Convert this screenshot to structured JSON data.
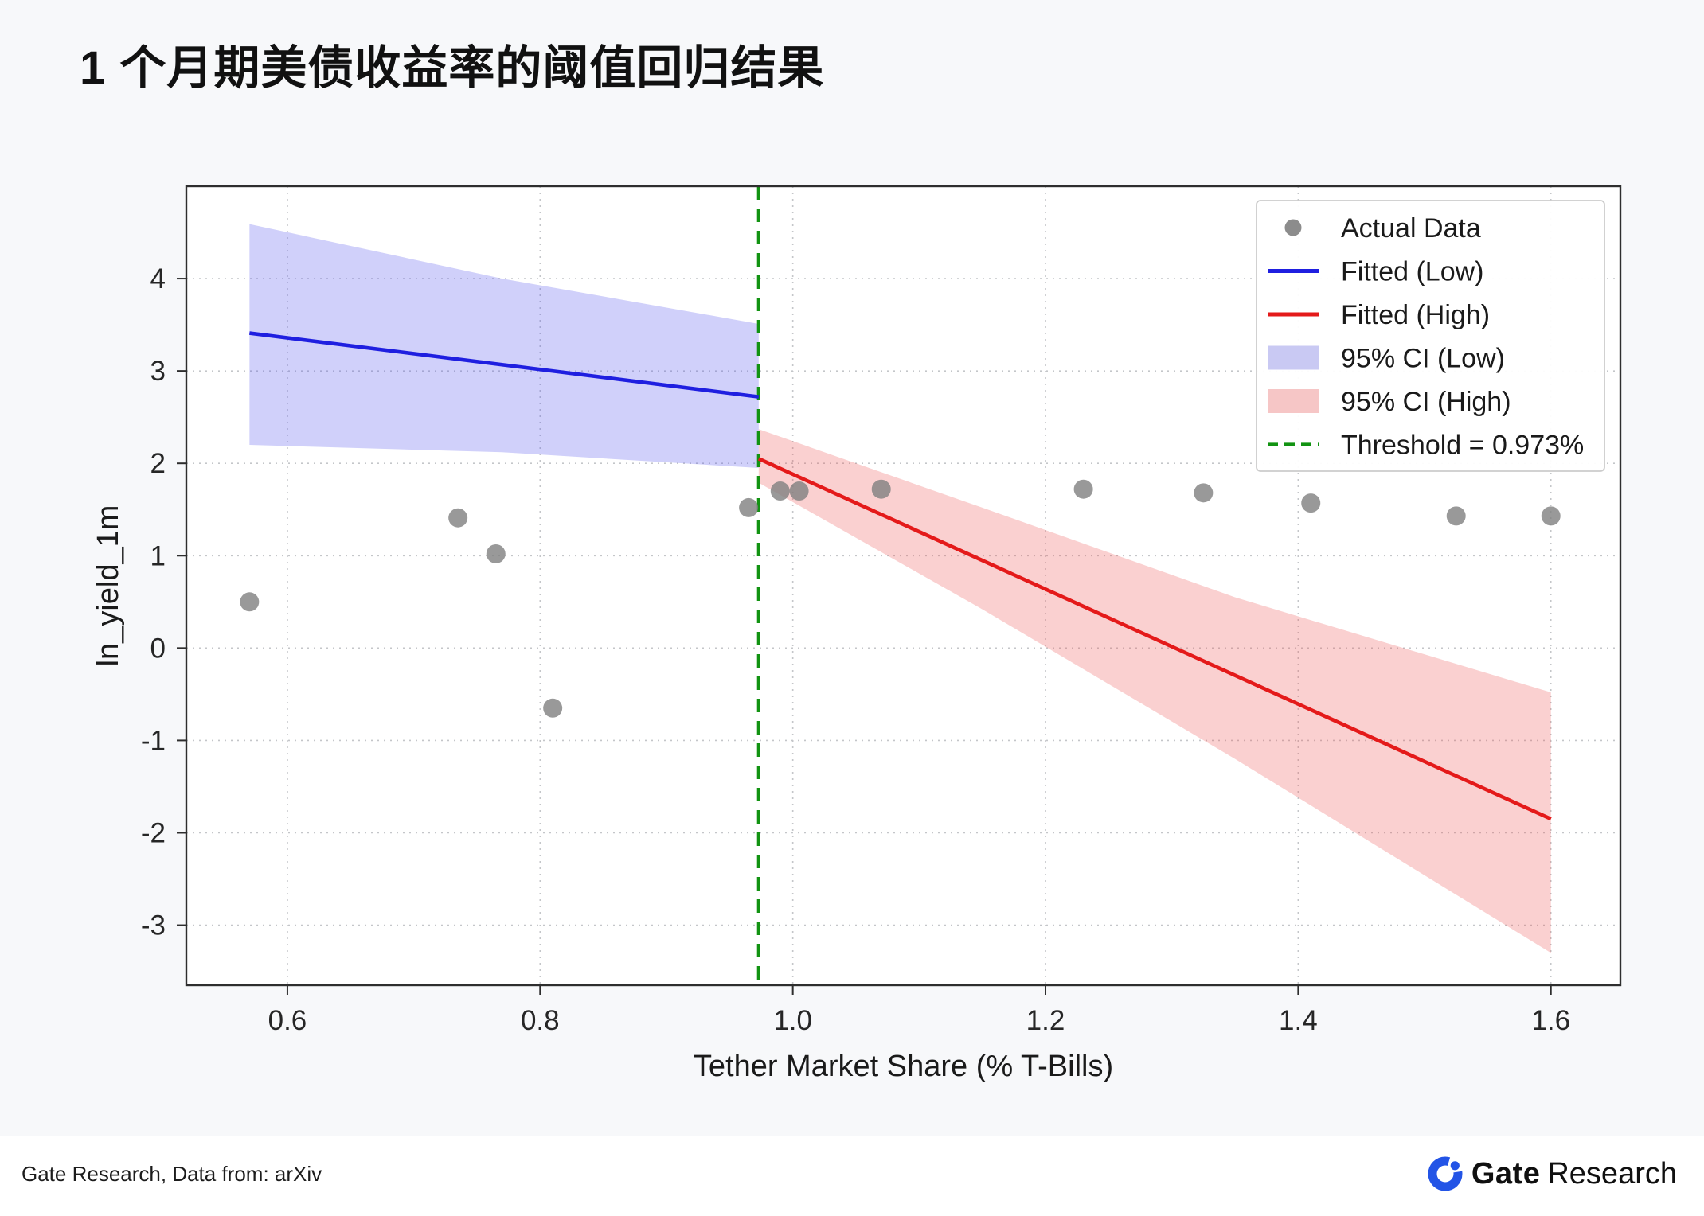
{
  "footer": {
    "source": "Gate Research, Data from: arXiv",
    "logo_bold": "Gate",
    "logo_regular": "Research",
    "logo_color": "#2354e6"
  },
  "chart_data": {
    "type": "scatter",
    "title": "1 个月期美债收益率的阈值回归结果",
    "xlabel": "Tether Market Share (% T-Bills)",
    "ylabel": "ln_yield_1m",
    "xlim": [
      0.52,
      1.655
    ],
    "ylim": [
      -3.65,
      5.0
    ],
    "xticks": [
      0.6,
      0.8,
      1.0,
      1.2,
      1.4,
      1.6
    ],
    "xtick_labels": [
      "0.6",
      "0.8",
      "1.0",
      "1.2",
      "1.4",
      "1.6"
    ],
    "yticks": [
      -3,
      -2,
      -1,
      0,
      1,
      2,
      3,
      4
    ],
    "ytick_labels": [
      "-3",
      "-2",
      "-1",
      "0",
      "1",
      "2",
      "3",
      "4"
    ],
    "grid": true,
    "grid_style": "dotted",
    "threshold": 0.973,
    "threshold_color": "#129312",
    "scatter": {
      "name": "Actual Data",
      "color": "#7f7f7f",
      "points": [
        [
          0.57,
          0.5
        ],
        [
          0.735,
          1.41
        ],
        [
          0.765,
          1.02
        ],
        [
          0.81,
          -0.65
        ],
        [
          0.965,
          1.52
        ],
        [
          0.99,
          1.7
        ],
        [
          1.005,
          1.7
        ],
        [
          1.07,
          1.72
        ],
        [
          1.23,
          1.72
        ],
        [
          1.325,
          1.68
        ],
        [
          1.41,
          1.57
        ],
        [
          1.525,
          1.43
        ],
        [
          1.6,
          1.43
        ]
      ]
    },
    "fitted_low": {
      "name": "Fitted (Low)",
      "color": "#1f1fe0",
      "points": [
        [
          0.57,
          3.41
        ],
        [
          0.973,
          2.72
        ]
      ]
    },
    "fitted_high": {
      "name": "Fitted (High)",
      "color": "#e41a1a",
      "points": [
        [
          0.973,
          2.05
        ],
        [
          1.6,
          -1.85
        ]
      ]
    },
    "ci_low": {
      "name": "95% CI (Low)",
      "fill": "rgba(80,80,235,0.27)",
      "upper": [
        [
          0.57,
          4.59
        ],
        [
          0.77,
          4.0
        ],
        [
          0.973,
          3.51
        ]
      ],
      "lower": [
        [
          0.57,
          2.2
        ],
        [
          0.77,
          2.12
        ],
        [
          0.973,
          1.95
        ]
      ]
    },
    "ci_high": {
      "name": "95% CI (High)",
      "fill": "rgba(235,80,80,0.27)",
      "upper": [
        [
          0.973,
          2.37
        ],
        [
          1.15,
          1.52
        ],
        [
          1.35,
          0.55
        ],
        [
          1.6,
          -0.48
        ]
      ],
      "lower": [
        [
          0.973,
          1.79
        ],
        [
          1.15,
          0.42
        ],
        [
          1.35,
          -1.2
        ],
        [
          1.6,
          -3.3
        ]
      ]
    },
    "legend": [
      {
        "label": "Actual Data",
        "type": "marker",
        "color": "#7f7f7f"
      },
      {
        "label": "Fitted (Low)",
        "type": "line",
        "color": "#1f1fe0"
      },
      {
        "label": "Fitted (High)",
        "type": "line",
        "color": "#e41a1a"
      },
      {
        "label": "95% CI (Low)",
        "type": "patch",
        "color": "#c9c9f3"
      },
      {
        "label": "95% CI (High)",
        "type": "patch",
        "color": "#f6c6c6"
      },
      {
        "label": "Threshold = 0.973%",
        "type": "dashed",
        "color": "#129312"
      }
    ],
    "legend_position": "upper right"
  }
}
